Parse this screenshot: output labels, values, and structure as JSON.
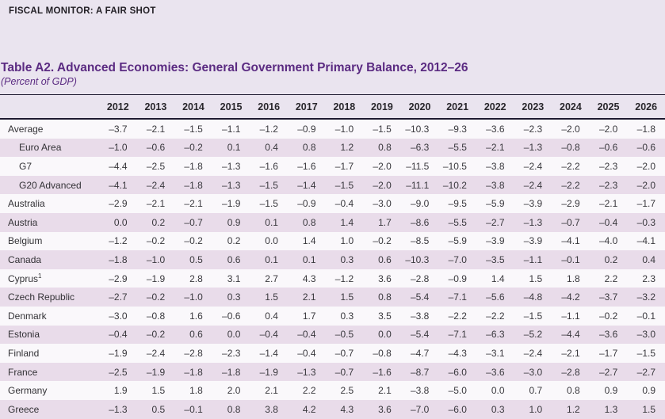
{
  "page": {
    "running_head": "FISCAL MONITOR: A FAIR SHOT",
    "title": "Table A2. Advanced Economies: General Government Primary Balance, 2012–26",
    "subtitle": "(Percent of GDP)"
  },
  "colors": {
    "page_background": "#eae4ef",
    "row_white": "#faf8fb",
    "row_stripe": "#e9dcea",
    "rule": "#1e1a30",
    "title_purple": "#5b2b82",
    "text": "#39383d"
  },
  "table": {
    "columns": [
      "2012",
      "2013",
      "2014",
      "2015",
      "2016",
      "2017",
      "2018",
      "2019",
      "2020",
      "2021",
      "2022",
      "2023",
      "2024",
      "2025",
      "2026"
    ],
    "rows": [
      {
        "label": "Average",
        "indent": false,
        "values": [
          "–3.7",
          "–2.1",
          "–1.5",
          "–1.1",
          "–1.2",
          "–0.9",
          "–1.0",
          "–1.5",
          "–10.3",
          "–9.3",
          "–3.6",
          "–2.3",
          "–2.0",
          "–2.0",
          "–1.8"
        ]
      },
      {
        "label": "Euro Area",
        "indent": true,
        "values": [
          "–1.0",
          "–0.6",
          "–0.2",
          "0.1",
          "0.4",
          "0.8",
          "1.2",
          "0.8",
          "–6.3",
          "–5.5",
          "–2.1",
          "–1.3",
          "–0.8",
          "–0.6",
          "–0.6"
        ]
      },
      {
        "label": "G7",
        "indent": true,
        "values": [
          "–4.4",
          "–2.5",
          "–1.8",
          "–1.3",
          "–1.6",
          "–1.6",
          "–1.7",
          "–2.0",
          "–11.5",
          "–10.5",
          "–3.8",
          "–2.4",
          "–2.2",
          "–2.3",
          "–2.0"
        ]
      },
      {
        "label": "G20 Advanced",
        "indent": true,
        "values": [
          "–4.1",
          "–2.4",
          "–1.8",
          "–1.3",
          "–1.5",
          "–1.4",
          "–1.5",
          "–2.0",
          "–11.1",
          "–10.2",
          "–3.8",
          "–2.4",
          "–2.2",
          "–2.3",
          "–2.0"
        ]
      },
      {
        "label": "Australia",
        "indent": false,
        "values": [
          "–2.9",
          "–2.1",
          "–2.1",
          "–1.9",
          "–1.5",
          "–0.9",
          "–0.4",
          "–3.0",
          "–9.0",
          "–9.5",
          "–5.9",
          "–3.9",
          "–2.9",
          "–2.1",
          "–1.7"
        ]
      },
      {
        "label": "Austria",
        "indent": false,
        "values": [
          "0.0",
          "0.2",
          "–0.7",
          "0.9",
          "0.1",
          "0.8",
          "1.4",
          "1.7",
          "–8.6",
          "–5.5",
          "–2.7",
          "–1.3",
          "–0.7",
          "–0.4",
          "–0.3"
        ]
      },
      {
        "label": "Belgium",
        "indent": false,
        "values": [
          "–1.2",
          "–0.2",
          "–0.2",
          "0.2",
          "0.0",
          "1.4",
          "1.0",
          "–0.2",
          "–8.5",
          "–5.9",
          "–3.9",
          "–3.9",
          "–4.1",
          "–4.0",
          "–4.1"
        ]
      },
      {
        "label": "Canada",
        "indent": false,
        "values": [
          "–1.8",
          "–1.0",
          "0.5",
          "0.6",
          "0.1",
          "0.1",
          "0.3",
          "0.6",
          "–10.3",
          "–7.0",
          "–3.5",
          "–1.1",
          "–0.1",
          "0.2",
          "0.4"
        ]
      },
      {
        "label": "Cyprus",
        "sup": "1",
        "indent": false,
        "values": [
          "–2.9",
          "–1.9",
          "2.8",
          "3.1",
          "2.7",
          "4.3",
          "–1.2",
          "3.6",
          "–2.8",
          "–0.9",
          "1.4",
          "1.5",
          "1.8",
          "2.2",
          "2.3"
        ]
      },
      {
        "label": "Czech Republic",
        "indent": false,
        "values": [
          "–2.7",
          "–0.2",
          "–1.0",
          "0.3",
          "1.5",
          "2.1",
          "1.5",
          "0.8",
          "–5.4",
          "–7.1",
          "–5.6",
          "–4.8",
          "–4.2",
          "–3.7",
          "–3.2"
        ]
      },
      {
        "label": "Denmark",
        "indent": false,
        "values": [
          "–3.0",
          "–0.8",
          "1.6",
          "–0.6",
          "0.4",
          "1.7",
          "0.3",
          "3.5",
          "–3.8",
          "–2.2",
          "–2.2",
          "–1.5",
          "–1.1",
          "–0.2",
          "–0.1"
        ]
      },
      {
        "label": "Estonia",
        "indent": false,
        "values": [
          "–0.4",
          "–0.2",
          "0.6",
          "0.0",
          "–0.4",
          "–0.4",
          "–0.5",
          "0.0",
          "–5.4",
          "–7.1",
          "–6.3",
          "–5.2",
          "–4.4",
          "–3.6",
          "–3.0"
        ]
      },
      {
        "label": "Finland",
        "indent": false,
        "values": [
          "–1.9",
          "–2.4",
          "–2.8",
          "–2.3",
          "–1.4",
          "–0.4",
          "–0.7",
          "–0.8",
          "–4.7",
          "–4.3",
          "–3.1",
          "–2.4",
          "–2.1",
          "–1.7",
          "–1.5"
        ]
      },
      {
        "label": "France",
        "indent": false,
        "values": [
          "–2.5",
          "–1.9",
          "–1.8",
          "–1.8",
          "–1.9",
          "–1.3",
          "–0.7",
          "–1.6",
          "–8.7",
          "–6.0",
          "–3.6",
          "–3.0",
          "–2.8",
          "–2.7",
          "–2.7"
        ]
      },
      {
        "label": "Germany",
        "indent": false,
        "values": [
          "1.9",
          "1.5",
          "1.8",
          "2.0",
          "2.1",
          "2.2",
          "2.5",
          "2.1",
          "–3.8",
          "–5.0",
          "0.0",
          "0.7",
          "0.8",
          "0.9",
          "0.9"
        ]
      },
      {
        "label": "Greece",
        "indent": false,
        "values": [
          "–1.3",
          "0.5",
          "–0.1",
          "0.8",
          "3.8",
          "4.2",
          "4.3",
          "3.6",
          "–7.0",
          "–6.0",
          "0.3",
          "1.0",
          "1.2",
          "1.3",
          "1.5"
        ]
      }
    ]
  }
}
